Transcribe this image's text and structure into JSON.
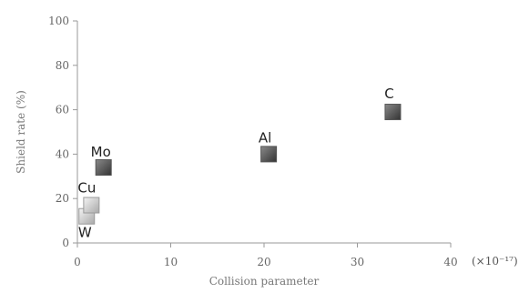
{
  "chart_data": {
    "type": "scatter",
    "xlabel": "Collision parameter",
    "ylabel": "Shield rate (%)",
    "x_unit": "(×10⁻¹⁷)",
    "xlim": [
      0,
      40
    ],
    "ylim": [
      0,
      100
    ],
    "xticks": [
      0,
      10,
      20,
      30,
      40
    ],
    "yticks": [
      0,
      20,
      40,
      60,
      80,
      100
    ],
    "grid": false,
    "marker_colors": {
      "dark": "#555555",
      "light": "#d0d0d0"
    },
    "points": [
      {
        "label": "W",
        "x": 1.0,
        "y": 12,
        "shade": "light"
      },
      {
        "label": "Cu",
        "x": 1.5,
        "y": 17,
        "shade": "light"
      },
      {
        "label": "Mo",
        "x": 2.8,
        "y": 34,
        "shade": "dark"
      },
      {
        "label": "Al",
        "x": 20.5,
        "y": 40,
        "shade": "dark"
      },
      {
        "label": "C",
        "x": 33.8,
        "y": 59,
        "shade": "dark"
      }
    ]
  }
}
